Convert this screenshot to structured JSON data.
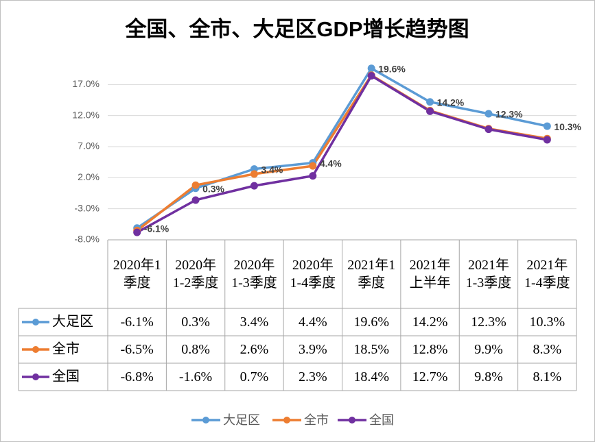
{
  "chart_data": {
    "type": "line",
    "title": "全国、全市、大足区GDP增长趋势图",
    "categories": [
      "2020年1季度",
      "2020年1-2季度",
      "2020年1-3季度",
      "2020年1-4季度",
      "2021年1季度",
      "2021年上半年",
      "2021年1-3季度",
      "2021年1-4季度"
    ],
    "series": [
      {
        "name": "大足区",
        "color": "#5b9bd5",
        "values": [
          -6.1,
          0.3,
          3.4,
          4.4,
          19.6,
          14.2,
          12.3,
          10.3
        ],
        "value_labels": [
          "-6.1%",
          "0.3%",
          "3.4%",
          "4.4%",
          "19.6%",
          "14.2%",
          "12.3%",
          "10.3%"
        ]
      },
      {
        "name": "全市",
        "color": "#ed7d31",
        "values": [
          -6.5,
          0.8,
          2.6,
          3.9,
          18.5,
          12.8,
          9.9,
          8.3
        ],
        "value_labels": [
          "-6.5%",
          "0.8%",
          "2.6%",
          "3.9%",
          "18.5%",
          "12.8%",
          "9.9%",
          "8.3%"
        ]
      },
      {
        "name": "全国",
        "color": "#7030a0",
        "values": [
          -6.8,
          -1.6,
          0.7,
          2.3,
          18.4,
          12.7,
          9.8,
          8.1
        ],
        "value_labels": [
          "-6.8%",
          "-1.6%",
          "0.7%",
          "2.3%",
          "18.4%",
          "12.7%",
          "9.8%",
          "8.1%"
        ]
      }
    ],
    "ylim": [
      -8,
      22
    ],
    "yticks": [
      {
        "value": -8,
        "label": "-8.0%"
      },
      {
        "value": -3,
        "label": "-3.0%"
      },
      {
        "value": 2,
        "label": "2.0%"
      },
      {
        "value": 7,
        "label": "7.0%"
      },
      {
        "value": 12,
        "label": "12.0%"
      },
      {
        "value": 17,
        "label": "17.0%"
      }
    ],
    "grid": true,
    "data_labels_series": 0,
    "legend": "bottom"
  }
}
